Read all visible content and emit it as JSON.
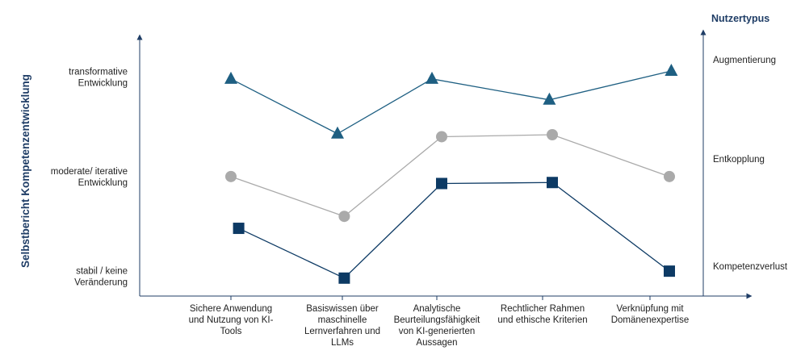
{
  "chart_data": {
    "type": "line",
    "ylabel": "Selbstbericht Kompetenzentwicklung",
    "categories": [
      [
        "Sichere Anwendung",
        "und Nutzung von KI-",
        "Tools"
      ],
      [
        "Basiswissen über",
        "maschinelle",
        "Lernverfahren und",
        "LLMs"
      ],
      [
        "Analytische",
        "Beurteilungsfähigkeit",
        "von KI-generierten",
        "Aussagen"
      ],
      [
        "Rechtlicher Rahmen",
        "und ethische Kriterien"
      ],
      [
        "Verknüpfung mit",
        "Domänenexpertise"
      ]
    ],
    "y_ticks": [
      {
        "value": 1,
        "lines": [
          "stabil / keine",
          "Veränderung"
        ]
      },
      {
        "value": 2,
        "lines": [
          "moderate/ iterative",
          "Entwicklung"
        ]
      },
      {
        "value": 3,
        "lines": [
          "transformative",
          "Entwicklung"
        ]
      }
    ],
    "ylim": [
      0.8,
      3.4
    ],
    "legend_title": "Nutzertypus",
    "series": [
      {
        "name": "Augmentierung",
        "marker": "triangle",
        "color": "#1e5f82",
        "line_color": "#1e5f82",
        "values": [
          2.98,
          2.43,
          2.98,
          2.77,
          3.06
        ],
        "x_offsets": [
          0,
          -0.05,
          -0.05,
          0.07,
          0.22
        ]
      },
      {
        "name": "Entkopplung",
        "marker": "circle",
        "color": "#aaaaaa",
        "line_color": "#aaaaaa",
        "values": [
          2.0,
          1.6,
          2.4,
          2.42,
          2.0
        ],
        "x_offsets": [
          0,
          0.02,
          0.05,
          0.1,
          0.2
        ]
      },
      {
        "name": "Kompetenzverlust",
        "marker": "square",
        "color": "#0d3a64",
        "line_color": "#0d3a64",
        "values": [
          1.48,
          0.98,
          1.93,
          1.94,
          1.05
        ],
        "x_offsets": [
          0.08,
          0.02,
          0.05,
          0.1,
          0.2
        ]
      }
    ]
  }
}
